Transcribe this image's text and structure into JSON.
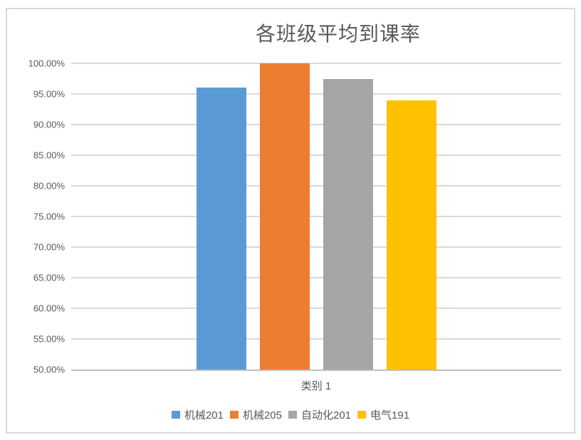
{
  "chart_data": {
    "type": "bar",
    "title": "各班级平均到课率",
    "categories": [
      "类别 1"
    ],
    "series": [
      {
        "name": "机械201",
        "color": "#5B9BD5",
        "values": [
          96.0
        ]
      },
      {
        "name": "机械205",
        "color": "#ED7D31",
        "values": [
          100.0
        ]
      },
      {
        "name": "自动化201",
        "color": "#A5A5A5",
        "values": [
          97.4
        ]
      },
      {
        "name": "电气191",
        "color": "#FFC000",
        "values": [
          94.0
        ]
      }
    ],
    "value_unit": "%",
    "ylim": [
      50,
      100
    ],
    "ytick_step": 5,
    "ytick_labels": [
      "100.00%",
      "95.00%",
      "90.00%",
      "85.00%",
      "80.00%",
      "75.00%",
      "70.00%",
      "65.00%",
      "60.00%",
      "55.00%",
      "50.00%"
    ],
    "grid": true,
    "legend_position": "bottom",
    "colors": {
      "gridline": "#D9D9D9",
      "axis_line": "#BFBFBF",
      "text": "#595959",
      "frame_border": "#D9D9D9",
      "background": "#FFFFFF"
    }
  }
}
